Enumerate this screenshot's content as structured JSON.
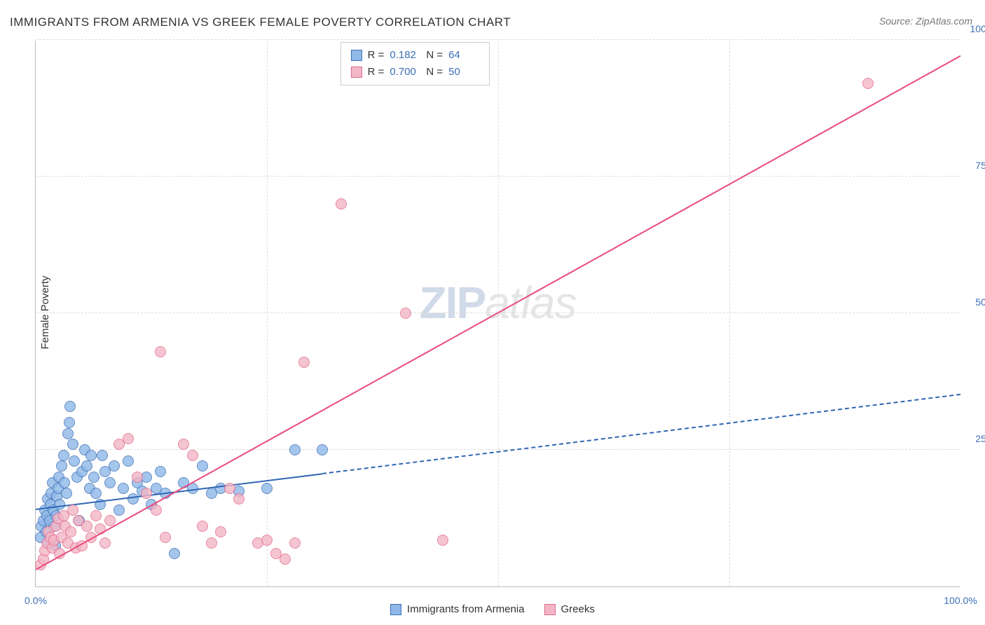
{
  "title": "IMMIGRANTS FROM ARMENIA VS GREEK FEMALE POVERTY CORRELATION CHART",
  "source": "Source: ZipAtlas.com",
  "ylabel": "Female Poverty",
  "watermark": {
    "zip": "ZIP",
    "atlas": "atlas"
  },
  "chart": {
    "type": "scatter",
    "background_color": "#ffffff",
    "grid_color": "#dddddd",
    "axis_color": "#bbbbbb",
    "tick_color": "#3d6fb5",
    "tick_fontsize": 14,
    "label_fontsize": 15,
    "title_fontsize": 17,
    "xlim": [
      0,
      100
    ],
    "ylim": [
      0,
      100
    ],
    "x_ticks": [
      0,
      100
    ],
    "x_tick_labels": [
      "0.0%",
      "100.0%"
    ],
    "y_ticks": [
      25,
      50,
      75,
      100
    ],
    "y_tick_labels": [
      "25.0%",
      "50.0%",
      "75.0%",
      "100.0%"
    ],
    "x_gridlines": [
      25,
      50,
      75
    ],
    "marker_radius": 8,
    "marker_border_width": 1.5,
    "marker_fill_opacity": 0.35,
    "trendline_width": 2.2
  },
  "legend_top": {
    "border_color": "#cccccc",
    "rows": [
      {
        "swatch_fill": "#8fb8e8",
        "swatch_border": "#3d6fb5",
        "r_label": "R =",
        "r_value": "0.182",
        "n_label": "N =",
        "n_value": "64"
      },
      {
        "swatch_fill": "#f3b6c6",
        "swatch_border": "#e26a8d",
        "r_label": "R =",
        "r_value": "0.700",
        "n_label": "N =",
        "n_value": "50"
      }
    ]
  },
  "legend_bottom": {
    "items": [
      {
        "swatch_fill": "#8fb8e8",
        "swatch_border": "#3d6fb5",
        "label": "Immigrants from Armenia"
      },
      {
        "swatch_fill": "#f3b6c6",
        "swatch_border": "#e26a8d",
        "label": "Greeks"
      }
    ]
  },
  "series": [
    {
      "name": "Immigrants from Armenia",
      "color_fill": "#8fb8e8",
      "color_border": "#3d6fb5",
      "trendline": {
        "solid_from": [
          0,
          14
        ],
        "solid_to": [
          31,
          20.5
        ],
        "dashed_to": [
          100,
          35
        ],
        "color": "#2f66b5",
        "dash": "8 6"
      },
      "points": [
        [
          0.5,
          9
        ],
        [
          0.6,
          11
        ],
        [
          0.8,
          12
        ],
        [
          1.0,
          14
        ],
        [
          1.1,
          10
        ],
        [
          1.2,
          13
        ],
        [
          1.3,
          16
        ],
        [
          1.4,
          8
        ],
        [
          1.5,
          12
        ],
        [
          1.6,
          15
        ],
        [
          1.7,
          17
        ],
        [
          1.8,
          19
        ],
        [
          1.9,
          14
        ],
        [
          2.0,
          11
        ],
        [
          2.1,
          7.5
        ],
        [
          2.2,
          13
        ],
        [
          2.3,
          16.5
        ],
        [
          2.4,
          18
        ],
        [
          2.5,
          20
        ],
        [
          2.6,
          15
        ],
        [
          2.8,
          22
        ],
        [
          3.0,
          24
        ],
        [
          3.1,
          19
        ],
        [
          3.3,
          17
        ],
        [
          3.5,
          28
        ],
        [
          3.6,
          30
        ],
        [
          3.7,
          33
        ],
        [
          4.0,
          26
        ],
        [
          4.2,
          23
        ],
        [
          4.5,
          20
        ],
        [
          4.7,
          12
        ],
        [
          5.0,
          21
        ],
        [
          5.3,
          25
        ],
        [
          5.5,
          22
        ],
        [
          5.8,
          18
        ],
        [
          6.0,
          24
        ],
        [
          6.3,
          20
        ],
        [
          6.5,
          17
        ],
        [
          7.0,
          15
        ],
        [
          7.2,
          24
        ],
        [
          7.5,
          21
        ],
        [
          8.0,
          19
        ],
        [
          8.5,
          22
        ],
        [
          9.0,
          14
        ],
        [
          9.5,
          18
        ],
        [
          10,
          23
        ],
        [
          10.5,
          16
        ],
        [
          11,
          19
        ],
        [
          11.5,
          17.5
        ],
        [
          12,
          20
        ],
        [
          12.5,
          15
        ],
        [
          13,
          18
        ],
        [
          13.5,
          21
        ],
        [
          14,
          17
        ],
        [
          15,
          6
        ],
        [
          16,
          19
        ],
        [
          17,
          18
        ],
        [
          18,
          22
        ],
        [
          19,
          17
        ],
        [
          20,
          18
        ],
        [
          22,
          17.5
        ],
        [
          25,
          18
        ],
        [
          28,
          25
        ],
        [
          31,
          25
        ]
      ]
    },
    {
      "name": "Greeks",
      "color_fill": "#f3b6c6",
      "color_border": "#e26a8d",
      "trendline": {
        "solid_from": [
          0,
          3
        ],
        "solid_to": [
          100,
          97
        ],
        "dashed_to": null,
        "color": "#e84b7f",
        "dash": null
      },
      "points": [
        [
          0.5,
          4
        ],
        [
          0.8,
          5
        ],
        [
          1.0,
          6.5
        ],
        [
          1.2,
          8
        ],
        [
          1.4,
          10
        ],
        [
          1.6,
          9
        ],
        [
          1.8,
          7
        ],
        [
          2.0,
          8.5
        ],
        [
          2.2,
          11
        ],
        [
          2.4,
          12.5
        ],
        [
          2.6,
          6
        ],
        [
          2.8,
          9
        ],
        [
          3.0,
          13
        ],
        [
          3.2,
          11
        ],
        [
          3.5,
          8
        ],
        [
          3.8,
          10
        ],
        [
          4.0,
          14
        ],
        [
          4.3,
          7
        ],
        [
          4.6,
          12
        ],
        [
          5.0,
          7.5
        ],
        [
          5.5,
          11
        ],
        [
          6.0,
          9
        ],
        [
          6.5,
          13
        ],
        [
          7.0,
          10.5
        ],
        [
          7.5,
          8
        ],
        [
          8.0,
          12
        ],
        [
          9.0,
          26
        ],
        [
          10,
          27
        ],
        [
          11,
          20
        ],
        [
          12,
          17
        ],
        [
          13,
          14
        ],
        [
          13.5,
          43
        ],
        [
          14,
          9
        ],
        [
          16,
          26
        ],
        [
          17,
          24
        ],
        [
          18,
          11
        ],
        [
          19,
          8
        ],
        [
          20,
          10
        ],
        [
          21,
          18
        ],
        [
          22,
          16
        ],
        [
          24,
          8
        ],
        [
          25,
          8.5
        ],
        [
          26,
          6
        ],
        [
          27,
          5
        ],
        [
          28,
          8
        ],
        [
          29,
          41
        ],
        [
          33,
          70
        ],
        [
          40,
          50
        ],
        [
          44,
          8.5
        ],
        [
          90,
          92
        ]
      ]
    }
  ]
}
